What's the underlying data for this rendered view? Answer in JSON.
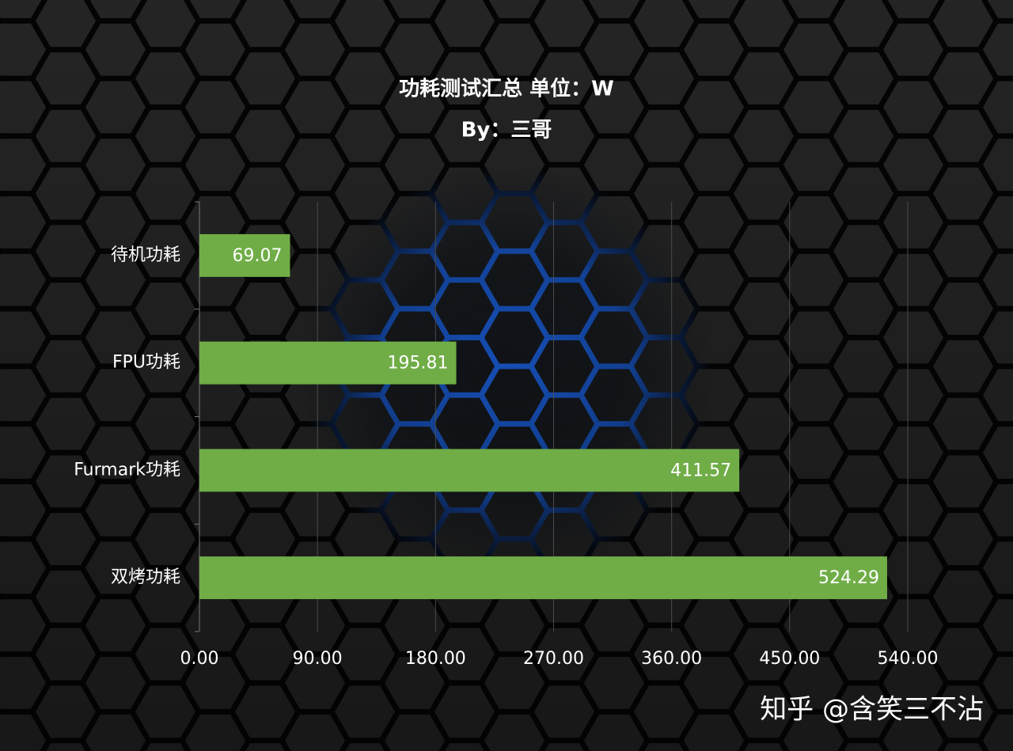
{
  "chart_data": {
    "type": "bar",
    "orientation": "horizontal",
    "title": "功耗测试汇总 单位：W",
    "subtitle": "By：三哥",
    "categories": [
      "待机功耗",
      "FPU功耗",
      "Furmark功耗",
      "双烤功耗"
    ],
    "values": [
      69.07,
      195.81,
      411.57,
      524.29
    ],
    "color": "#70ad47",
    "xlim": [
      0,
      540
    ],
    "xticks": [
      {
        "value": 0,
        "label": "0.00"
      },
      {
        "value": 90,
        "label": "90.00"
      },
      {
        "value": 180,
        "label": "180.00"
      },
      {
        "value": 270,
        "label": "270.00"
      },
      {
        "value": 360,
        "label": "360.00"
      },
      {
        "value": 450,
        "label": "450.00"
      },
      {
        "value": 540,
        "label": "540.00"
      }
    ],
    "grid": true
  },
  "watermark": "知乎 @含笑三不沾"
}
